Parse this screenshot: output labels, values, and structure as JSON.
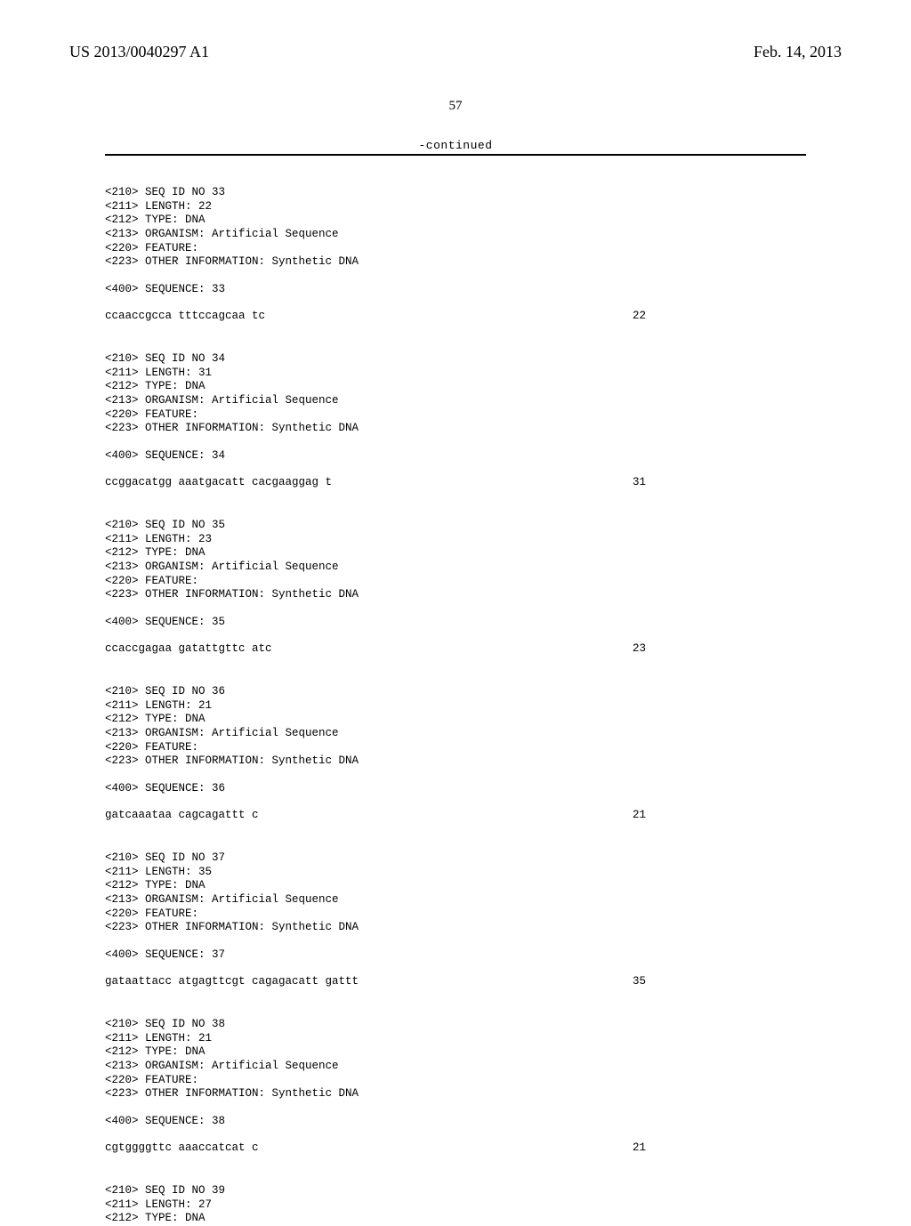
{
  "header": {
    "publication_number": "US 2013/0040297 A1",
    "publication_date": "Feb. 14, 2013"
  },
  "page_number": "57",
  "continued_label": "-continued",
  "entries": [
    {
      "tags": [
        "<210> SEQ ID NO 33",
        "<211> LENGTH: 22",
        "<212> TYPE: DNA",
        "<213> ORGANISM: Artificial Sequence",
        "<220> FEATURE:",
        "<223> OTHER INFORMATION: Synthetic DNA"
      ],
      "seq_label": "<400> SEQUENCE: 33",
      "sequence": "ccaaccgcca tttccagcaa tc",
      "length": "22"
    },
    {
      "tags": [
        "<210> SEQ ID NO 34",
        "<211> LENGTH: 31",
        "<212> TYPE: DNA",
        "<213> ORGANISM: Artificial Sequence",
        "<220> FEATURE:",
        "<223> OTHER INFORMATION: Synthetic DNA"
      ],
      "seq_label": "<400> SEQUENCE: 34",
      "sequence": "ccggacatgg aaatgacatt cacgaaggag t",
      "length": "31"
    },
    {
      "tags": [
        "<210> SEQ ID NO 35",
        "<211> LENGTH: 23",
        "<212> TYPE: DNA",
        "<213> ORGANISM: Artificial Sequence",
        "<220> FEATURE:",
        "<223> OTHER INFORMATION: Synthetic DNA"
      ],
      "seq_label": "<400> SEQUENCE: 35",
      "sequence": "ccaccgagaa gatattgttc atc",
      "length": "23"
    },
    {
      "tags": [
        "<210> SEQ ID NO 36",
        "<211> LENGTH: 21",
        "<212> TYPE: DNA",
        "<213> ORGANISM: Artificial Sequence",
        "<220> FEATURE:",
        "<223> OTHER INFORMATION: Synthetic DNA"
      ],
      "seq_label": "<400> SEQUENCE: 36",
      "sequence": "gatcaaataa cagcagattt c",
      "length": "21"
    },
    {
      "tags": [
        "<210> SEQ ID NO 37",
        "<211> LENGTH: 35",
        "<212> TYPE: DNA",
        "<213> ORGANISM: Artificial Sequence",
        "<220> FEATURE:",
        "<223> OTHER INFORMATION: Synthetic DNA"
      ],
      "seq_label": "<400> SEQUENCE: 37",
      "sequence": "gataattacc atgagttcgt cagagacatt gattt",
      "length": "35"
    },
    {
      "tags": [
        "<210> SEQ ID NO 38",
        "<211> LENGTH: 21",
        "<212> TYPE: DNA",
        "<213> ORGANISM: Artificial Sequence",
        "<220> FEATURE:",
        "<223> OTHER INFORMATION: Synthetic DNA"
      ],
      "seq_label": "<400> SEQUENCE: 38",
      "sequence": "cgtggggttc aaaccatcat c",
      "length": "21"
    },
    {
      "tags": [
        "<210> SEQ ID NO 39",
        "<211> LENGTH: 27",
        "<212> TYPE: DNA"
      ],
      "seq_label": "",
      "sequence": "",
      "length": ""
    }
  ]
}
